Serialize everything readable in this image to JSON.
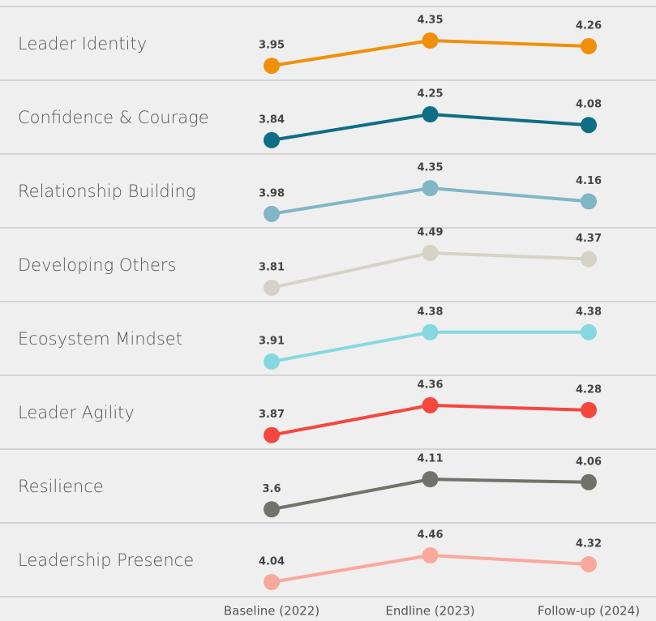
{
  "chart_data": {
    "type": "line",
    "categories": [
      "Baseline (2022)",
      "Endline (2023)",
      "Follow-up (2024)"
    ],
    "series": [
      {
        "name": "Leader Identity",
        "color": "#f0900a",
        "values": [
          3.95,
          4.35,
          4.26
        ],
        "ylim": [
          3.72,
          4.89
        ]
      },
      {
        "name": "Confidence & Courage",
        "color": "#0e6e86",
        "values": [
          3.84,
          4.25,
          4.08
        ],
        "ylim": [
          3.62,
          4.79
        ]
      },
      {
        "name": "Relationship Building",
        "color": "#80b6c6",
        "values": [
          3.98,
          4.35,
          4.16
        ],
        "ylim": [
          3.78,
          4.84
        ]
      },
      {
        "name": "Developing Others",
        "color": "#d6d2c6",
        "values": [
          3.81,
          4.49,
          4.37
        ],
        "ylim": [
          3.54,
          4.98
        ]
      },
      {
        "name": "Ecosystem Mindset",
        "color": "#86d8e0",
        "values": [
          3.91,
          4.38,
          4.38
        ],
        "ylim": [
          3.69,
          4.87
        ]
      },
      {
        "name": "Leader Agility",
        "color": "#f5473e",
        "values": [
          3.87,
          4.36,
          4.28
        ],
        "ylim": [
          3.64,
          4.85
        ]
      },
      {
        "name": "Resilience",
        "color": "#72726a",
        "values": [
          3.6,
          4.11,
          4.06
        ],
        "ylim": [
          3.37,
          4.62
        ]
      },
      {
        "name": "Leadership Presence",
        "color": "#f9a89c",
        "values": [
          4.04,
          4.46,
          4.32
        ],
        "ylim": [
          3.81,
          4.97
        ]
      }
    ]
  }
}
